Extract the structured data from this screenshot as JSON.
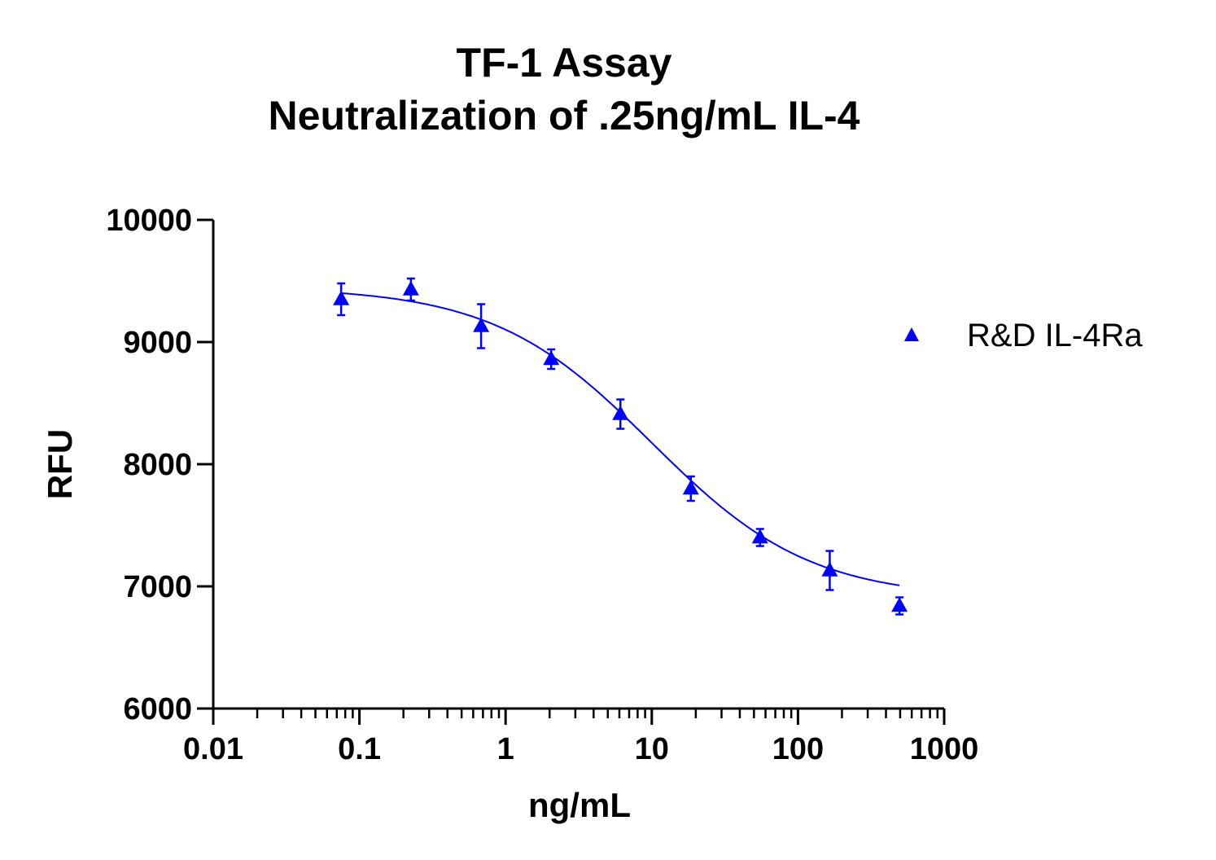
{
  "chart_data": {
    "type": "scatter",
    "title": "TF-1 Assay",
    "subtitle": "Neutralization of .25ng/mL IL-4",
    "xlabel": "ng/mL",
    "ylabel": "RFU",
    "x_scale": "log",
    "xlim": [
      0.01,
      1000
    ],
    "ylim": [
      6000,
      10000
    ],
    "x_ticks": [
      "0.01",
      "0.1",
      "1",
      "10",
      "100",
      "1000"
    ],
    "y_ticks": [
      "6000",
      "7000",
      "8000",
      "9000",
      "10000"
    ],
    "grid": false,
    "legend_position": "right",
    "series": [
      {
        "name": "R&D IL-4Ra",
        "color": "#0000ff",
        "marker": "triangle",
        "x": [
          0.075,
          0.225,
          0.68,
          2.05,
          6.1,
          18.5,
          55,
          165,
          495
        ],
        "y": [
          9350,
          9430,
          9130,
          8860,
          8410,
          7800,
          7400,
          7130,
          6840
        ],
        "err": [
          130,
          90,
          180,
          80,
          120,
          100,
          70,
          160,
          70
        ],
        "fit": {
          "model": "4PL",
          "top": 9450,
          "bottom": 6900,
          "ec50": 10,
          "hill": 0.8,
          "x_range": [
            0.075,
            495
          ]
        }
      }
    ]
  }
}
